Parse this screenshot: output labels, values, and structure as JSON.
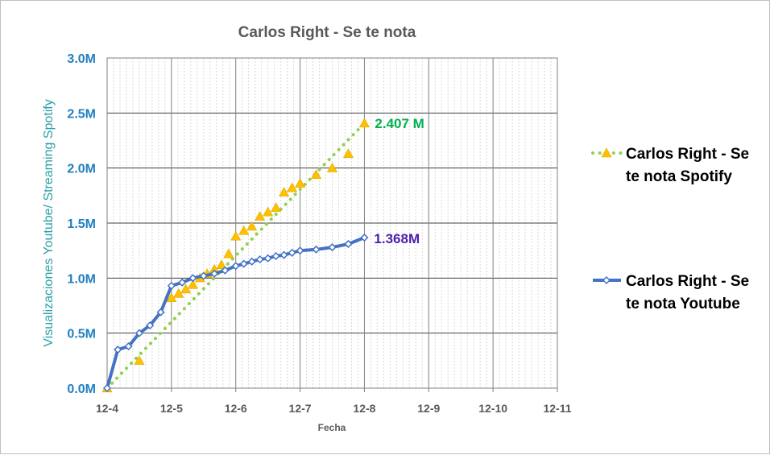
{
  "chart_data": {
    "type": "line",
    "title": "Carlos Right - Se te nota",
    "xlabel": "Fecha",
    "ylabel": "Visualizaciones Youtube/ Streaming Spotify",
    "xlim": [
      "12-4",
      "12-11"
    ],
    "ylim": [
      0,
      3.0
    ],
    "x_tick_labels": [
      "12-4",
      "12-5",
      "12-6",
      "12-7",
      "12-8",
      "12-9",
      "12-10",
      "12-11"
    ],
    "y_tick_labels": [
      "0.0M",
      "0.5M",
      "1.0M",
      "1.5M",
      "2.0M",
      "2.5M",
      "3.0M"
    ],
    "grid": true,
    "legend_position": "right",
    "series": [
      {
        "name": "Carlos Right - Se te nota Spotify",
        "color": "#92d050",
        "marker": "triangle",
        "marker_color": "#ffc000",
        "line_style": "dotted",
        "points": [
          {
            "x": "12-4",
            "y": 0.0
          },
          {
            "x": "12-4",
            "y": 0.25
          },
          {
            "x": "12-5",
            "y": 0.82
          },
          {
            "x": "12-5",
            "y": 0.86
          },
          {
            "x": "12-5",
            "y": 0.9
          },
          {
            "x": "12-5",
            "y": 0.94
          },
          {
            "x": "12-5",
            "y": 1.0
          },
          {
            "x": "12-5",
            "y": 1.04
          },
          {
            "x": "12-5",
            "y": 1.08
          },
          {
            "x": "12-5",
            "y": 1.12
          },
          {
            "x": "12-5",
            "y": 1.22
          },
          {
            "x": "12-6",
            "y": 1.38
          },
          {
            "x": "12-6",
            "y": 1.43
          },
          {
            "x": "12-6",
            "y": 1.47
          },
          {
            "x": "12-6",
            "y": 1.56
          },
          {
            "x": "12-6",
            "y": 1.6
          },
          {
            "x": "12-6",
            "y": 1.64
          },
          {
            "x": "12-6",
            "y": 1.78
          },
          {
            "x": "12-6",
            "y": 1.82
          },
          {
            "x": "12-7",
            "y": 1.86
          },
          {
            "x": "12-7",
            "y": 1.94
          },
          {
            "x": "12-7",
            "y": 2.0
          },
          {
            "x": "12-7",
            "y": 2.13
          },
          {
            "x": "12-8",
            "y": 2.407
          }
        ]
      },
      {
        "name": "Carlos Right - Se te nota Youtube",
        "color": "#4472c4",
        "marker": "diamond",
        "marker_color": "#ffffff",
        "line_style": "solid",
        "points": [
          {
            "x": "12-4",
            "y": 0.0
          },
          {
            "x": "12-4",
            "y": 0.35
          },
          {
            "x": "12-4",
            "y": 0.38
          },
          {
            "x": "12-4",
            "y": 0.5
          },
          {
            "x": "12-4",
            "y": 0.57
          },
          {
            "x": "12-4",
            "y": 0.69
          },
          {
            "x": "12-5",
            "y": 0.93
          },
          {
            "x": "12-5",
            "y": 0.96
          },
          {
            "x": "12-5",
            "y": 1.0
          },
          {
            "x": "12-5",
            "y": 1.02
          },
          {
            "x": "12-5",
            "y": 1.04
          },
          {
            "x": "12-5",
            "y": 1.07
          },
          {
            "x": "12-6",
            "y": 1.11
          },
          {
            "x": "12-6",
            "y": 1.13
          },
          {
            "x": "12-6",
            "y": 1.15
          },
          {
            "x": "12-6",
            "y": 1.17
          },
          {
            "x": "12-6",
            "y": 1.18
          },
          {
            "x": "12-6",
            "y": 1.2
          },
          {
            "x": "12-6",
            "y": 1.21
          },
          {
            "x": "12-6",
            "y": 1.23
          },
          {
            "x": "12-7",
            "y": 1.25
          },
          {
            "x": "12-7",
            "y": 1.26
          },
          {
            "x": "12-7",
            "y": 1.28
          },
          {
            "x": "12-7",
            "y": 1.31
          },
          {
            "x": "12-8",
            "y": 1.368
          }
        ]
      }
    ],
    "annotations": [
      {
        "text": "2.407 M",
        "series": 0,
        "color": "#00b050"
      },
      {
        "text": "1.368M",
        "series": 1,
        "color": "#4b1eae"
      }
    ]
  }
}
